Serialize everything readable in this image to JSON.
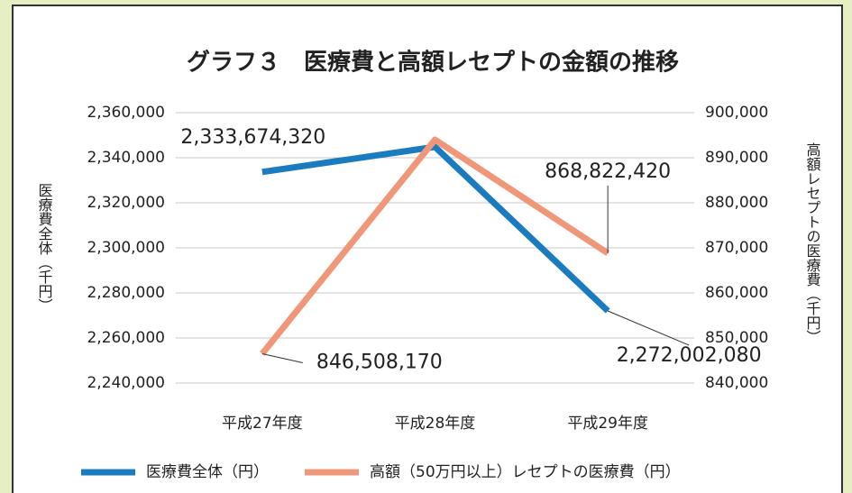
{
  "chart_data": {
    "type": "line",
    "title": "グラフ３　医療費と高額レセプトの金額の推移",
    "y_label": "医療費全体（千円）",
    "y2_label": "高額レセプトの医療費（千円）",
    "categories": [
      "平成27年度",
      "平成28年度",
      "平成29年度"
    ],
    "series": [
      {
        "name": "医療費全体（円）",
        "color": "#1a7bbf",
        "values": [
          2333674.32,
          2344800,
          2272002.08
        ],
        "value_labels": [
          "2,333,674,320",
          null,
          "2,272,002,080"
        ]
      },
      {
        "name": "高額（50万円以上）レセプトの医療費（円）",
        "color": "#f0977a",
        "axis": "y2",
        "values": [
          846508.17,
          894000,
          868822.42
        ],
        "value_labels": [
          "846,508,170",
          null,
          "868,822,420"
        ]
      }
    ],
    "ylim": [
      2240000,
      2360000
    ],
    "yticks": [
      {
        "value": 2240000,
        "label": "2,240,000"
      },
      {
        "value": 2260000,
        "label": "2,260,000"
      },
      {
        "value": 2280000,
        "label": "2,280,000"
      },
      {
        "value": 2300000,
        "label": "2,300,000"
      },
      {
        "value": 2320000,
        "label": "2,320,000"
      },
      {
        "value": 2340000,
        "label": "2,340,000"
      },
      {
        "value": 2360000,
        "label": "2,360,000"
      }
    ],
    "y2lim": [
      840000,
      900000
    ],
    "y2ticks": [
      {
        "value": 840000,
        "label": "840,000"
      },
      {
        "value": 850000,
        "label": "850,000"
      },
      {
        "value": 860000,
        "label": "860,000"
      },
      {
        "value": 870000,
        "label": "870,000"
      },
      {
        "value": 880000,
        "label": "880,000"
      },
      {
        "value": 890000,
        "label": "890,000"
      },
      {
        "value": 900000,
        "label": "900,000"
      }
    ],
    "grid": true
  }
}
